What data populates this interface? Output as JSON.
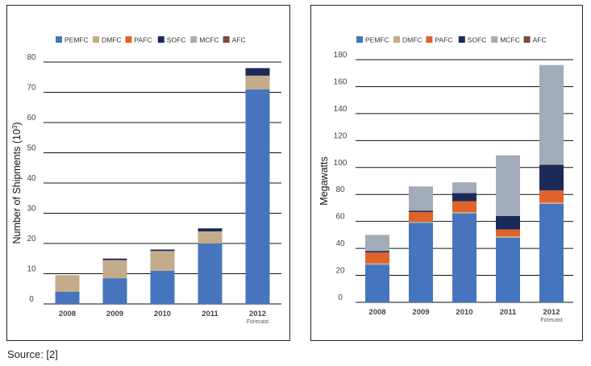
{
  "source_label": "Source: [2]",
  "colors": {
    "PEMFC": "#4775bd",
    "DMFC": "#c4ac8b",
    "PAFC": "#e0632a",
    "SOFC": "#1c2a5a",
    "MCFC": "#a2acb8",
    "AFC": "#7a4a3a"
  },
  "chart_data": [
    {
      "type": "bar",
      "stacked": true,
      "title": "",
      "xlabel": "",
      "ylabel": "Number of Shipments (10",
      "ylabel_sup": "3",
      "ylabel_close": ")",
      "ylim": [
        0,
        80
      ],
      "yticks": [
        0,
        10,
        20,
        30,
        40,
        50,
        60,
        70,
        80
      ],
      "categories": [
        "2008",
        "2009",
        "2010",
        "2011",
        "2012"
      ],
      "category_note": {
        "2012": "Forecast"
      },
      "legend": [
        "PEMFC",
        "DMFC",
        "PAFC",
        "SOFC",
        "MCFC",
        "AFC"
      ],
      "legend_position": "top-right",
      "series": [
        {
          "name": "PEMFC",
          "values": [
            4,
            8.5,
            11,
            20,
            71
          ]
        },
        {
          "name": "DMFC",
          "values": [
            5.5,
            6,
            6.5,
            4,
            4.5
          ]
        },
        {
          "name": "PAFC",
          "values": [
            0,
            0,
            0,
            0,
            0
          ]
        },
        {
          "name": "SOFC",
          "values": [
            0,
            0.5,
            0.5,
            1,
            2.5
          ]
        },
        {
          "name": "MCFC",
          "values": [
            0,
            0,
            0,
            0,
            0
          ]
        },
        {
          "name": "AFC",
          "values": [
            0,
            0,
            0,
            0,
            0
          ]
        }
      ]
    },
    {
      "type": "bar",
      "stacked": true,
      "title": "",
      "xlabel": "",
      "ylabel": "Megawatts",
      "ylim": [
        0,
        180
      ],
      "yticks": [
        0,
        20,
        40,
        60,
        80,
        100,
        120,
        140,
        160,
        180
      ],
      "categories": [
        "2008",
        "2009",
        "2010",
        "2011",
        "2012"
      ],
      "category_note": {
        "2012": "Forecast"
      },
      "legend": [
        "PEMFC",
        "DMFC",
        "PAFC",
        "SOFC",
        "MCFC",
        "AFC"
      ],
      "legend_position": "top-right",
      "series": [
        {
          "name": "PEMFC",
          "values": [
            28,
            59,
            66,
            48,
            73
          ]
        },
        {
          "name": "DMFC",
          "values": [
            1,
            1,
            1,
            1,
            1
          ]
        },
        {
          "name": "PAFC",
          "values": [
            8,
            7,
            8,
            5,
            9
          ]
        },
        {
          "name": "SOFC",
          "values": [
            1,
            1,
            6,
            10,
            19
          ]
        },
        {
          "name": "MCFC",
          "values": [
            12,
            18,
            8,
            45,
            74
          ]
        },
        {
          "name": "AFC",
          "values": [
            0,
            0,
            0,
            0,
            0
          ]
        }
      ]
    }
  ]
}
